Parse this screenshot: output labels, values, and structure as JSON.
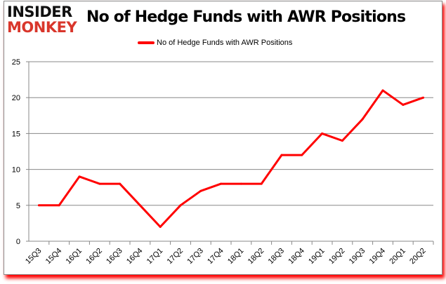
{
  "logo": {
    "line1": "INSIDER",
    "line2": "MONKEY"
  },
  "chart_data": {
    "type": "line",
    "title": "No of Hedge Funds with AWR Positions",
    "xlabel": "",
    "ylabel": "",
    "categories": [
      "15Q3",
      "15Q4",
      "16Q1",
      "16Q2",
      "16Q3",
      "16Q4",
      "17Q1",
      "17Q2",
      "17Q3",
      "17Q4",
      "18Q1",
      "18Q2",
      "18Q3",
      "18Q4",
      "19Q1",
      "19Q2",
      "19Q3",
      "19Q4",
      "20Q1",
      "20Q2"
    ],
    "series": [
      {
        "name": "No of Hedge Funds with AWR Positions",
        "color": "#ff0000",
        "values": [
          5,
          5,
          9,
          8,
          8,
          5,
          2,
          5,
          7,
          8,
          8,
          8,
          12,
          12,
          15,
          14,
          17,
          21,
          19,
          20
        ]
      }
    ],
    "ylim": [
      0,
      25
    ],
    "yticks": [
      0,
      5,
      10,
      15,
      20,
      25
    ],
    "grid": true,
    "legend": "top"
  }
}
